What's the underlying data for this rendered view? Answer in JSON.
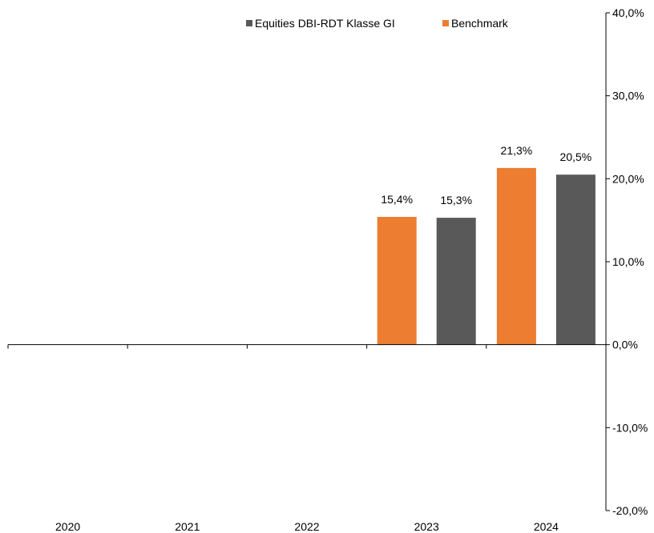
{
  "chart_data": {
    "type": "bar",
    "categories": [
      "2020",
      "2021",
      "2022",
      "2023",
      "2024"
    ],
    "series": [
      {
        "name": "Benchmark",
        "color": "#ED7D31",
        "values": [
          null,
          null,
          null,
          15.4,
          21.3
        ]
      },
      {
        "name": "Equities DBI-RDT Klasse GI",
        "color": "#595959",
        "values": [
          null,
          null,
          null,
          15.3,
          20.5
        ]
      }
    ],
    "data_labels": {
      "Benchmark": [
        "",
        "",
        "",
        "15,4%",
        "21,3%"
      ],
      "Equities DBI-RDT Klasse GI": [
        "",
        "",
        "",
        "15,3%",
        "20,5%"
      ]
    },
    "legend": [
      {
        "name": "Equities DBI-RDT Klasse GI",
        "color": "#595959"
      },
      {
        "name": "Benchmark",
        "color": "#ED7D31"
      }
    ],
    "legend_position": "top",
    "y_axis_position": "right",
    "ylim": [
      -20,
      40
    ],
    "yticks": [
      40,
      30,
      20,
      10,
      0,
      -10,
      -20
    ],
    "ytick_labels": [
      "40,0%",
      "30,0%",
      "20,0%",
      "10,0%",
      "0,0%",
      "-10,0%",
      "-20,0%"
    ],
    "title": "",
    "xlabel": "",
    "ylabel": "",
    "grid": false
  }
}
